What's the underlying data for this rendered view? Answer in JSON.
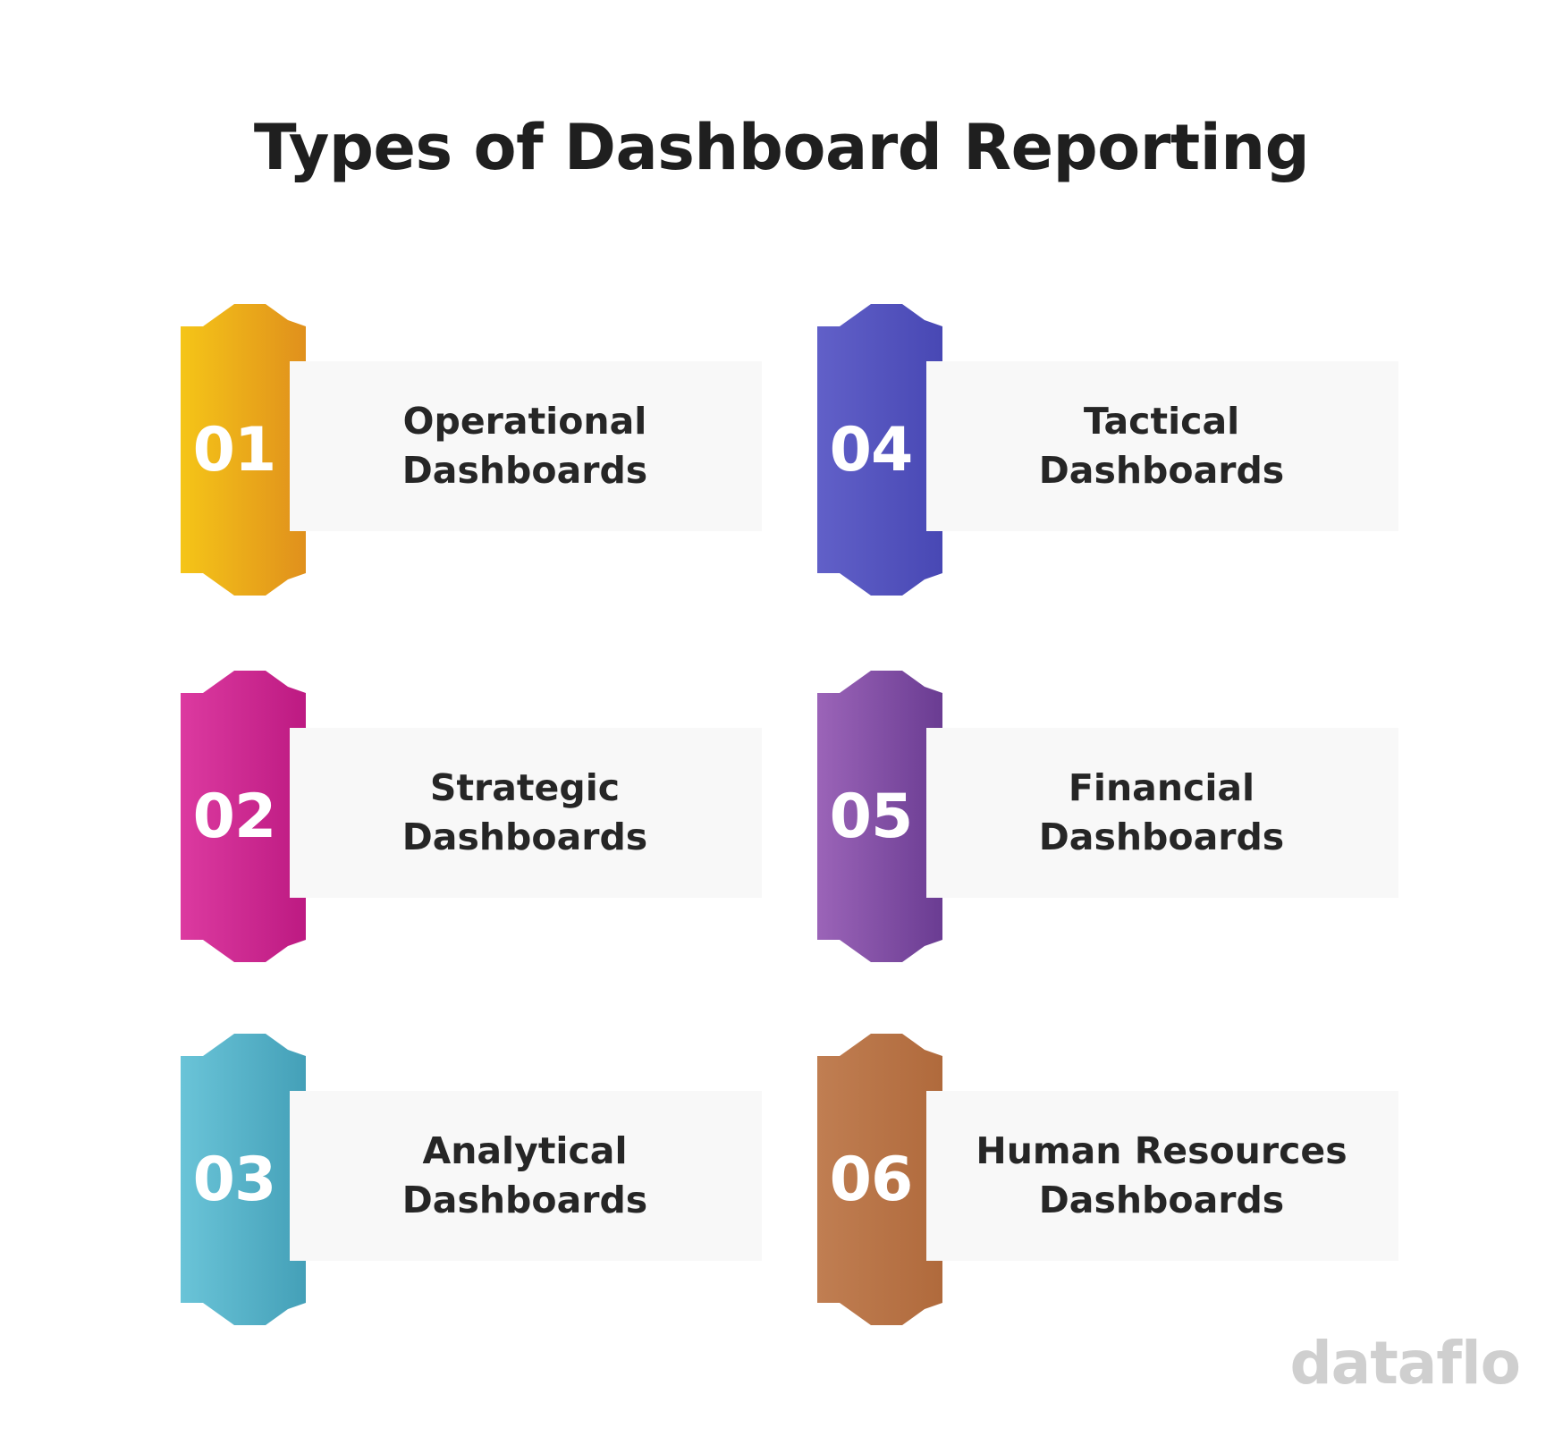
{
  "title": "Types of Dashboard Reporting",
  "items": [
    {
      "number": "01",
      "line1": "Operational",
      "line2": "Dashboards",
      "color_start": "#f5c518",
      "color_end": "#e0901c"
    },
    {
      "number": "02",
      "line1": "Strategic",
      "line2": "Dashboards",
      "color_start": "#dc3aa0",
      "color_end": "#bd1a82"
    },
    {
      "number": "03",
      "line1": "Analytical",
      "line2": "Dashboards",
      "color_start": "#6ac4d8",
      "color_end": "#44a0b8"
    },
    {
      "number": "04",
      "line1": "Tactical",
      "line2": "Dashboards",
      "color_start": "#6160c8",
      "color_end": "#4848b4"
    },
    {
      "number": "05",
      "line1": "Financial",
      "line2": "Dashboards",
      "color_start": "#9b64b8",
      "color_end": "#6a3c92"
    },
    {
      "number": "06",
      "line1": "Human Resources",
      "line2": "Dashboards",
      "color_start": "#c07e52",
      "color_end": "#b06a3c"
    }
  ],
  "logo": "dataflo"
}
